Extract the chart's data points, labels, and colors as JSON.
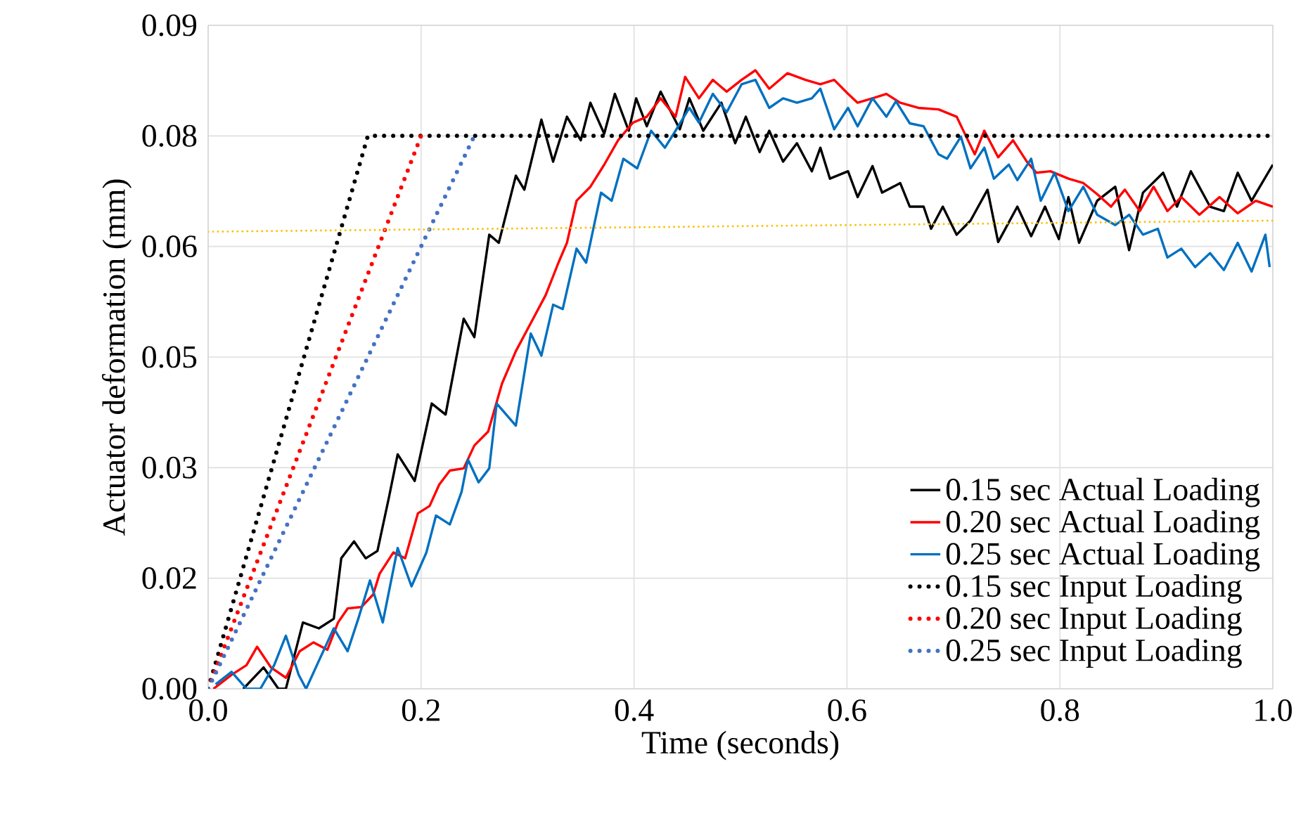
{
  "chart_data": {
    "type": "line",
    "xlabel": "Time (seconds)",
    "ylabel": "Actuator deformation (mm)",
    "xlim": [
      0,
      1
    ],
    "ylim": [
      0,
      0.09
    ],
    "xticks": [
      {
        "value": 0,
        "label": "0.0"
      },
      0.2,
      0.4,
      0.6,
      0.8,
      {
        "value": 1,
        "label": "1.0"
      }
    ],
    "yticks": [
      {
        "value": 0,
        "label": "0.00"
      },
      {
        "value": 0.015,
        "label": "0.02"
      },
      {
        "value": 0.03,
        "label": "0.03"
      },
      {
        "value": 0.045,
        "label": "0.05"
      },
      {
        "value": 0.06,
        "label": "0.06"
      },
      {
        "value": 0.075,
        "label": "0.08"
      },
      {
        "value": 0.09,
        "label": "0.09"
      }
    ],
    "grid": true,
    "legend": "bottom right",
    "marker": "none",
    "series": [
      {
        "name": "0.15 sec Actual Loading",
        "color": "#000000",
        "line_style": "solid",
        "x": [
          0.033,
          0.052,
          0.066,
          0.073,
          0.089,
          0.104,
          0.118,
          0.125,
          0.137,
          0.148,
          0.159,
          0.17,
          0.178,
          0.194,
          0.21,
          0.223,
          0.24,
          0.25,
          0.264,
          0.273,
          0.289,
          0.297,
          0.313,
          0.324,
          0.337,
          0.35,
          0.359,
          0.372,
          0.382,
          0.395,
          0.402,
          0.412,
          0.425,
          0.443,
          0.452,
          0.465,
          0.482,
          0.495,
          0.505,
          0.518,
          0.527,
          0.54,
          0.553,
          0.567,
          0.575,
          0.584,
          0.601,
          0.61,
          0.624,
          0.633,
          0.65,
          0.659,
          0.672,
          0.679,
          0.69,
          0.703,
          0.716,
          0.732,
          0.742,
          0.76,
          0.773,
          0.786,
          0.799,
          0.808,
          0.818,
          0.835,
          0.852,
          0.865,
          0.878,
          0.897,
          0.91,
          0.923,
          0.941,
          0.954,
          0.967,
          0.98,
          1.0
        ],
        "values": [
          0,
          0.0029,
          0,
          0,
          0.009,
          0.0082,
          0.0095,
          0.0177,
          0.02,
          0.0177,
          0.0187,
          0.0261,
          0.0318,
          0.0282,
          0.0387,
          0.0372,
          0.0502,
          0.0477,
          0.0616,
          0.0605,
          0.0696,
          0.0677,
          0.0772,
          0.0715,
          0.0776,
          0.0744,
          0.0795,
          0.0753,
          0.0807,
          0.0757,
          0.0801,
          0.0763,
          0.081,
          0.0759,
          0.0801,
          0.0757,
          0.0795,
          0.074,
          0.0776,
          0.0728,
          0.0757,
          0.0715,
          0.074,
          0.0702,
          0.0734,
          0.0692,
          0.0702,
          0.0667,
          0.0709,
          0.0673,
          0.0686,
          0.0654,
          0.0654,
          0.0624,
          0.0654,
          0.0616,
          0.0635,
          0.0677,
          0.0606,
          0.0654,
          0.0614,
          0.0654,
          0.061,
          0.0667,
          0.0605,
          0.0662,
          0.0681,
          0.0595,
          0.0673,
          0.07,
          0.0654,
          0.0702,
          0.0654,
          0.0648,
          0.07,
          0.0662,
          0.0711
        ]
      },
      {
        "name": "0.20 sec Actual Loading",
        "color": "#ff0000",
        "line_style": "solid",
        "x": [
          0.005,
          0.022,
          0.036,
          0.046,
          0.059,
          0.073,
          0.086,
          0.099,
          0.112,
          0.122,
          0.131,
          0.144,
          0.155,
          0.161,
          0.174,
          0.185,
          0.197,
          0.208,
          0.217,
          0.227,
          0.24,
          0.25,
          0.263,
          0.276,
          0.289,
          0.303,
          0.317,
          0.329,
          0.337,
          0.346,
          0.359,
          0.372,
          0.385,
          0.399,
          0.412,
          0.425,
          0.439,
          0.448,
          0.461,
          0.474,
          0.487,
          0.501,
          0.514,
          0.527,
          0.544,
          0.561,
          0.575,
          0.588,
          0.601,
          0.61,
          0.624,
          0.637,
          0.65,
          0.667,
          0.686,
          0.703,
          0.712,
          0.72,
          0.729,
          0.742,
          0.756,
          0.769,
          0.778,
          0.791,
          0.808,
          0.822,
          0.835,
          0.848,
          0.861,
          0.875,
          0.888,
          0.901,
          0.914,
          0.931,
          0.95,
          0.967,
          0.984,
          1.0
        ],
        "values": [
          0,
          0.0019,
          0.0032,
          0.0057,
          0.0029,
          0.0015,
          0.0051,
          0.0063,
          0.0053,
          0.009,
          0.0109,
          0.0111,
          0.0128,
          0.0156,
          0.0185,
          0.0177,
          0.0238,
          0.0248,
          0.0277,
          0.0296,
          0.0299,
          0.033,
          0.0349,
          0.0414,
          0.0458,
          0.0496,
          0.0534,
          0.0578,
          0.0605,
          0.0662,
          0.0681,
          0.0711,
          0.0744,
          0.0768,
          0.0776,
          0.0801,
          0.0776,
          0.083,
          0.0801,
          0.0826,
          0.081,
          0.0826,
          0.0839,
          0.0814,
          0.0835,
          0.0826,
          0.082,
          0.0826,
          0.0807,
          0.0795,
          0.0801,
          0.0807,
          0.0795,
          0.0788,
          0.0786,
          0.0776,
          0.0749,
          0.0725,
          0.0757,
          0.0721,
          0.0744,
          0.0715,
          0.07,
          0.0702,
          0.0692,
          0.0686,
          0.0671,
          0.0654,
          0.0677,
          0.0648,
          0.0681,
          0.0648,
          0.0667,
          0.0643,
          0.0667,
          0.0645,
          0.0662,
          0.0654
        ]
      },
      {
        "name": "0.25 sec Actual Loading",
        "color": "#0070c0",
        "line_style": "solid",
        "x": [
          0.007,
          0.022,
          0.036,
          0.049,
          0.062,
          0.073,
          0.085,
          0.092,
          0.104,
          0.118,
          0.131,
          0.141,
          0.152,
          0.164,
          0.178,
          0.191,
          0.205,
          0.214,
          0.227,
          0.238,
          0.244,
          0.254,
          0.264,
          0.271,
          0.289,
          0.303,
          0.313,
          0.324,
          0.333,
          0.346,
          0.355,
          0.369,
          0.379,
          0.39,
          0.403,
          0.416,
          0.429,
          0.439,
          0.452,
          0.461,
          0.474,
          0.487,
          0.501,
          0.514,
          0.527,
          0.54,
          0.553,
          0.567,
          0.575,
          0.588,
          0.601,
          0.61,
          0.624,
          0.637,
          0.646,
          0.659,
          0.672,
          0.686,
          0.694,
          0.707,
          0.716,
          0.729,
          0.738,
          0.752,
          0.76,
          0.773,
          0.782,
          0.795,
          0.808,
          0.822,
          0.835,
          0.852,
          0.865,
          0.878,
          0.892,
          0.901,
          0.914,
          0.927,
          0.941,
          0.954,
          0.967,
          0.98,
          0.993,
          0.997
        ],
        "values": [
          0.0006,
          0.0023,
          0,
          0,
          0.0032,
          0.0072,
          0.0019,
          0,
          0.0038,
          0.0082,
          0.0051,
          0.0095,
          0.0147,
          0.009,
          0.0191,
          0.0139,
          0.0185,
          0.0235,
          0.0223,
          0.0267,
          0.0311,
          0.028,
          0.0299,
          0.0387,
          0.0357,
          0.0482,
          0.0452,
          0.0521,
          0.0515,
          0.0597,
          0.0578,
          0.0673,
          0.0662,
          0.0719,
          0.0706,
          0.0757,
          0.0734,
          0.0757,
          0.0788,
          0.0768,
          0.0807,
          0.0782,
          0.082,
          0.0826,
          0.0788,
          0.0801,
          0.0795,
          0.0801,
          0.0814,
          0.0759,
          0.0788,
          0.0763,
          0.0801,
          0.0776,
          0.0797,
          0.0767,
          0.0763,
          0.0725,
          0.0719,
          0.0749,
          0.0706,
          0.0734,
          0.0692,
          0.0711,
          0.069,
          0.0719,
          0.0662,
          0.07,
          0.0648,
          0.0681,
          0.0643,
          0.0629,
          0.0643,
          0.0616,
          0.0624,
          0.0585,
          0.0597,
          0.0572,
          0.0591,
          0.0568,
          0.0605,
          0.0566,
          0.0616,
          0.0572
        ]
      },
      {
        "name": "0.15 sec Input Loading",
        "color": "#000000",
        "line_style": "dotted",
        "x": [
          0,
          0.15,
          1.0
        ],
        "values": [
          0,
          0.075,
          0.075
        ]
      },
      {
        "name": "0.20 sec Input Loading",
        "color": "#ff0000",
        "line_style": "dotted",
        "x": [
          0,
          0.2
        ],
        "values": [
          0,
          0.075
        ]
      },
      {
        "name": "0.25 sec Input Loading",
        "color": "#4472c4",
        "line_style": "dotted",
        "x": [
          0,
          0.25
        ],
        "values": [
          0,
          0.075
        ]
      },
      {
        "color": "#ffc000",
        "line_style": "dotted_fine",
        "x": [
          0,
          1.0
        ],
        "values": [
          0.062,
          0.0635
        ]
      }
    ]
  }
}
